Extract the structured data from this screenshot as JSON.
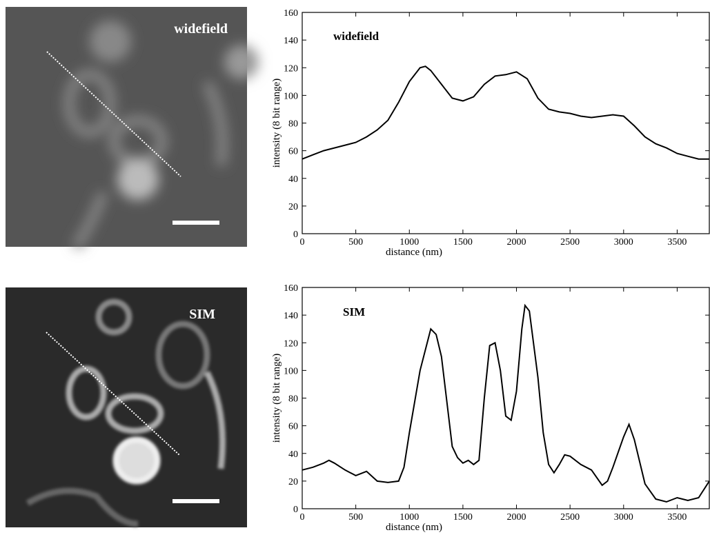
{
  "chart_data": [
    {
      "type": "line",
      "title": "widefield",
      "xlabel": "distance (nm)",
      "ylabel": "intensity (8 bit range)",
      "color": "#000000",
      "xlim": [
        0,
        3800
      ],
      "ylim": [
        0,
        160
      ],
      "xticks": [
        0,
        500,
        1000,
        1500,
        2000,
        2500,
        3000,
        3500
      ],
      "yticks": [
        0,
        20,
        40,
        60,
        80,
        100,
        120,
        140,
        160
      ],
      "x": [
        0,
        100,
        200,
        300,
        400,
        500,
        600,
        700,
        800,
        900,
        1000,
        1100,
        1150,
        1200,
        1300,
        1400,
        1500,
        1600,
        1700,
        1800,
        1900,
        2000,
        2100,
        2200,
        2300,
        2400,
        2500,
        2600,
        2700,
        2800,
        2900,
        3000,
        3100,
        3200,
        3300,
        3400,
        3500,
        3600,
        3700,
        3800
      ],
      "values": [
        54,
        57,
        60,
        62,
        64,
        66,
        70,
        75,
        82,
        95,
        110,
        120,
        121,
        118,
        108,
        98,
        96,
        99,
        108,
        114,
        115,
        117,
        112,
        98,
        90,
        88,
        87,
        85,
        84,
        85,
        86,
        85,
        78,
        70,
        65,
        62,
        58,
        56,
        54,
        54
      ]
    },
    {
      "type": "line",
      "title": "SIM",
      "xlabel": "distance (nm)",
      "ylabel": "intensity (8 bit range)",
      "color": "#000000",
      "xlim": [
        0,
        3800
      ],
      "ylim": [
        0,
        160
      ],
      "xticks": [
        0,
        500,
        1000,
        1500,
        2000,
        2500,
        3000,
        3500
      ],
      "yticks": [
        0,
        20,
        40,
        60,
        80,
        100,
        120,
        140,
        160
      ],
      "x": [
        0,
        100,
        200,
        250,
        300,
        400,
        500,
        600,
        700,
        800,
        900,
        950,
        1000,
        1100,
        1200,
        1250,
        1300,
        1400,
        1450,
        1500,
        1550,
        1600,
        1650,
        1700,
        1750,
        1800,
        1850,
        1900,
        1950,
        2000,
        2050,
        2080,
        2120,
        2200,
        2250,
        2300,
        2350,
        2400,
        2450,
        2500,
        2600,
        2700,
        2800,
        2850,
        2900,
        3000,
        3050,
        3100,
        3200,
        3300,
        3400,
        3500,
        3550,
        3600,
        3700,
        3800
      ],
      "values": [
        28,
        30,
        33,
        35,
        33,
        28,
        24,
        27,
        20,
        19,
        20,
        30,
        55,
        100,
        130,
        126,
        110,
        45,
        37,
        33,
        35,
        32,
        35,
        80,
        118,
        120,
        100,
        67,
        64,
        85,
        130,
        147,
        143,
        95,
        55,
        32,
        26,
        32,
        39,
        38,
        32,
        28,
        17,
        20,
        30,
        52,
        61,
        50,
        18,
        7,
        5,
        8,
        7,
        6,
        8,
        20
      ]
    }
  ]
}
